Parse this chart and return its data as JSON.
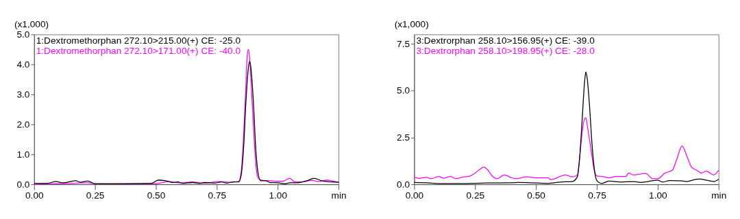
{
  "chart_data": [
    {
      "type": "line",
      "ylabel": "(x1,000)",
      "legend": "top left",
      "grid": false,
      "xlim": [
        0,
        1.25
      ],
      "ylim": [
        0,
        5.0
      ],
      "xticks": [
        {
          "value": 0,
          "label": "0.00"
        },
        {
          "value": 0.25,
          "label": "0.25"
        },
        {
          "value": 0.5,
          "label": "0.50"
        },
        {
          "value": 0.75,
          "label": "0.75"
        },
        {
          "value": 1.0,
          "label": "1.00"
        },
        {
          "value": 1.25,
          "label": "min"
        }
      ],
      "yticks": [
        {
          "value": 0,
          "label": "0.0"
        },
        {
          "value": 1,
          "label": "1.0"
        },
        {
          "value": 2,
          "label": "2.0"
        },
        {
          "value": 3,
          "label": "3.0"
        },
        {
          "value": 4,
          "label": "4.0"
        },
        {
          "value": 5,
          "label": "5.0"
        }
      ],
      "series": [
        {
          "name": "1:Dextromethorphan 272.10>171.00(+) CE: -40.0",
          "color": "#ff00ff",
          "x": [
            0.0,
            0.05,
            0.1,
            0.15,
            0.22,
            0.25,
            0.5,
            0.55,
            0.6,
            0.65,
            0.7,
            0.76,
            0.8,
            0.84,
            0.85,
            0.86,
            0.87,
            0.875,
            0.88,
            0.885,
            0.89,
            0.9,
            0.91,
            0.92,
            0.94,
            0.97,
            1.0,
            1.02,
            1.05,
            1.07,
            1.1,
            1.14,
            1.17,
            1.2,
            1.25
          ],
          "values": [
            0.0,
            0.02,
            0.02,
            0.03,
            0.05,
            0.02,
            0.02,
            0.09,
            0.05,
            0.08,
            0.04,
            0.09,
            0.07,
            0.1,
            0.4,
            1.6,
            3.4,
            4.3,
            4.5,
            4.2,
            3.5,
            2.0,
            0.7,
            0.2,
            0.13,
            0.12,
            0.1,
            0.1,
            0.2,
            0.08,
            0.08,
            0.13,
            0.09,
            0.14,
            0.06
          ]
        },
        {
          "name": "1:Dextromethorphan 272.10>215.00(+) CE: -25.0",
          "color": "#000000",
          "x": [
            0.0,
            0.05,
            0.09,
            0.12,
            0.17,
            0.19,
            0.22,
            0.25,
            0.35,
            0.48,
            0.51,
            0.54,
            0.57,
            0.59,
            0.61,
            0.65,
            0.68,
            0.7,
            0.74,
            0.77,
            0.79,
            0.82,
            0.84,
            0.85,
            0.86,
            0.87,
            0.88,
            0.885,
            0.89,
            0.9,
            0.91,
            0.92,
            0.93,
            0.95,
            0.97,
            1.0,
            1.03,
            1.05,
            1.08,
            1.12,
            1.15,
            1.18,
            1.22,
            1.25
          ],
          "values": [
            0.03,
            0.03,
            0.09,
            0.05,
            0.12,
            0.07,
            0.11,
            0.02,
            0.02,
            0.03,
            0.14,
            0.12,
            0.06,
            0.08,
            0.03,
            0.06,
            0.03,
            0.06,
            0.04,
            0.08,
            0.04,
            0.08,
            0.08,
            0.3,
            1.2,
            2.8,
            3.9,
            4.1,
            3.9,
            2.8,
            1.2,
            0.35,
            0.12,
            0.12,
            0.06,
            0.05,
            0.02,
            0.05,
            0.05,
            0.12,
            0.2,
            0.12,
            0.08,
            0.07
          ]
        }
      ]
    },
    {
      "type": "line",
      "ylabel": "(x1,000)",
      "legend": "top left",
      "grid": false,
      "xlim": [
        0,
        1.25
      ],
      "ylim": [
        0,
        8.0
      ],
      "xticks": [
        {
          "value": 0,
          "label": "0.00"
        },
        {
          "value": 0.25,
          "label": "0.25"
        },
        {
          "value": 0.5,
          "label": "0.50"
        },
        {
          "value": 0.75,
          "label": "0.75"
        },
        {
          "value": 1.0,
          "label": "1.00"
        },
        {
          "value": 1.25,
          "label": "min"
        }
      ],
      "yticks": [
        {
          "value": 0,
          "label": "0.0"
        },
        {
          "value": 2.5,
          "label": "2.5"
        },
        {
          "value": 5,
          "label": "5.0"
        },
        {
          "value": 7.5,
          "label": "7.5"
        }
      ],
      "series": [
        {
          "name": "3:Dextrorphan 258.10>198.95(+) CE: -28.0",
          "color": "#ff00ff",
          "x": [
            0.0,
            0.02,
            0.05,
            0.07,
            0.1,
            0.12,
            0.15,
            0.17,
            0.2,
            0.23,
            0.25,
            0.27,
            0.285,
            0.3,
            0.32,
            0.34,
            0.37,
            0.4,
            0.42,
            0.46,
            0.5,
            0.55,
            0.56,
            0.6,
            0.62,
            0.65,
            0.67,
            0.68,
            0.69,
            0.7,
            0.705,
            0.71,
            0.72,
            0.73,
            0.74,
            0.75,
            0.78,
            0.8,
            0.83,
            0.87,
            0.88,
            0.9,
            0.95,
            0.98,
            1.0,
            1.03,
            1.06,
            1.08,
            1.1,
            1.12,
            1.14,
            1.16,
            1.18,
            1.2,
            1.23,
            1.25
          ],
          "values": [
            0.37,
            0.32,
            0.37,
            0.3,
            0.42,
            0.33,
            0.42,
            0.3,
            0.38,
            0.45,
            0.6,
            0.8,
            0.92,
            0.8,
            0.45,
            0.3,
            0.5,
            0.35,
            0.3,
            0.4,
            0.35,
            0.35,
            0.25,
            0.42,
            0.5,
            0.4,
            0.5,
            1.5,
            2.8,
            3.5,
            3.55,
            3.2,
            2.4,
            1.5,
            0.7,
            0.45,
            0.4,
            0.35,
            0.42,
            0.42,
            0.6,
            0.5,
            0.58,
            0.3,
            0.3,
            0.6,
            0.75,
            1.4,
            2.05,
            1.5,
            0.9,
            0.75,
            0.6,
            0.7,
            0.5,
            0.75
          ]
        },
        {
          "name": "3:Dextrorphan 258.10>156.95(+) CE: -39.0",
          "color": "#000000",
          "x": [
            0.0,
            0.05,
            0.1,
            0.2,
            0.3,
            0.4,
            0.43,
            0.5,
            0.55,
            0.6,
            0.65,
            0.67,
            0.68,
            0.69,
            0.7,
            0.705,
            0.71,
            0.72,
            0.73,
            0.74,
            0.75,
            0.77,
            0.8,
            0.85,
            0.9,
            0.93,
            0.96,
            1.0,
            1.02,
            1.05,
            1.1,
            1.12,
            1.15,
            1.17,
            1.2,
            1.23,
            1.25
          ],
          "values": [
            0.1,
            0.08,
            0.04,
            0.04,
            0.07,
            0.08,
            0.1,
            0.07,
            0.05,
            0.12,
            0.15,
            0.4,
            1.5,
            3.5,
            5.5,
            6.0,
            5.7,
            4.2,
            2.2,
            0.8,
            0.2,
            0.05,
            0.17,
            0.12,
            0.15,
            0.1,
            0.15,
            0.22,
            0.12,
            0.2,
            0.18,
            0.15,
            0.25,
            0.28,
            0.22,
            0.15,
            0.27
          ]
        }
      ]
    }
  ]
}
